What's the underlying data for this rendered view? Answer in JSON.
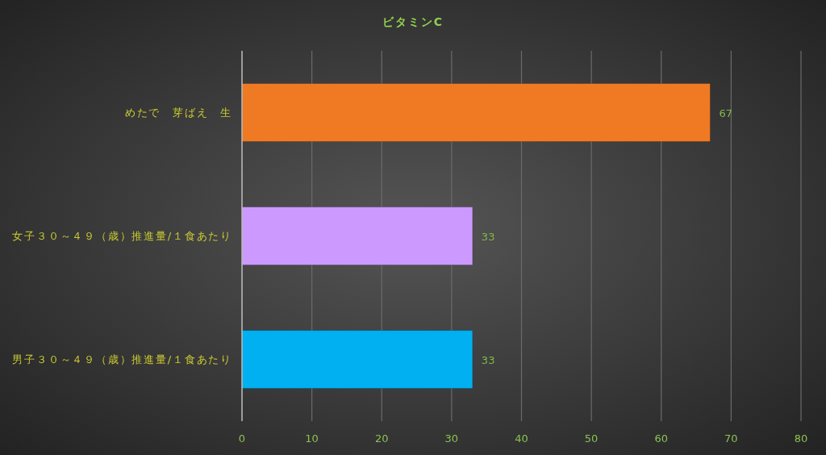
{
  "chart_data": {
    "type": "bar",
    "orientation": "horizontal",
    "title": "ビタミンC",
    "categories": [
      "めたで　芽ばえ　生",
      "女子３０～４９（歳）推進量/１食あたり",
      "男子３０～４９（歳）推進量/１食あたり"
    ],
    "values": [
      67,
      33,
      33
    ],
    "colors": [
      "#f07a24",
      "#cc99ff",
      "#00b0f0"
    ],
    "xlim": [
      0,
      80
    ],
    "xticks": [
      0,
      10,
      20,
      30,
      40,
      50,
      60,
      70,
      80
    ],
    "grid": "x",
    "data_labels": true
  }
}
